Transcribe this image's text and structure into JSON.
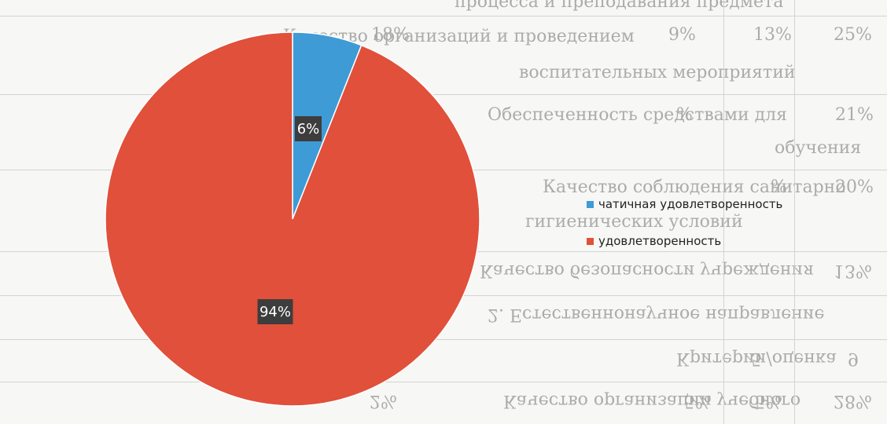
{
  "background_document": {
    "lines": [
      {
        "text": "процесса и преподавания предмета",
        "values": []
      },
      {
        "text": "Качество организаций и  проведением",
        "values": [
          "18%",
          "9%",
          "13%",
          "25%"
        ]
      },
      {
        "text": "воспитательных мероприятий",
        "values": []
      },
      {
        "text": "Обеспеченность средствами для",
        "values": [
          "%",
          "21%"
        ]
      },
      {
        "text": "обучения",
        "values": []
      },
      {
        "text": "Качество соблюдения санитарно",
        "values": [
          "%",
          "20%"
        ]
      },
      {
        "text": "гигиенических условий",
        "values": []
      },
      {
        "text": "Качество безопасности учреждения",
        "values": [
          "13%"
        ]
      },
      {
        "text": "2.  Естественнонаучное направление",
        "values": []
      },
      {
        "text": "Критерии/оценка",
        "values": [
          "5",
          "9"
        ]
      },
      {
        "text": "Качество организации учебного",
        "values": [
          "2%",
          "5%",
          "5%",
          "28%"
        ]
      }
    ]
  },
  "chart_data": {
    "type": "pie",
    "categories": [
      "чатичная удовлетворенность",
      "удовлетворенность"
    ],
    "values": [
      6,
      94
    ],
    "data_labels": [
      "6%",
      "94%"
    ],
    "colors": [
      "#3e9bd6",
      "#e0503a"
    ],
    "legend_position": "right",
    "title": ""
  }
}
